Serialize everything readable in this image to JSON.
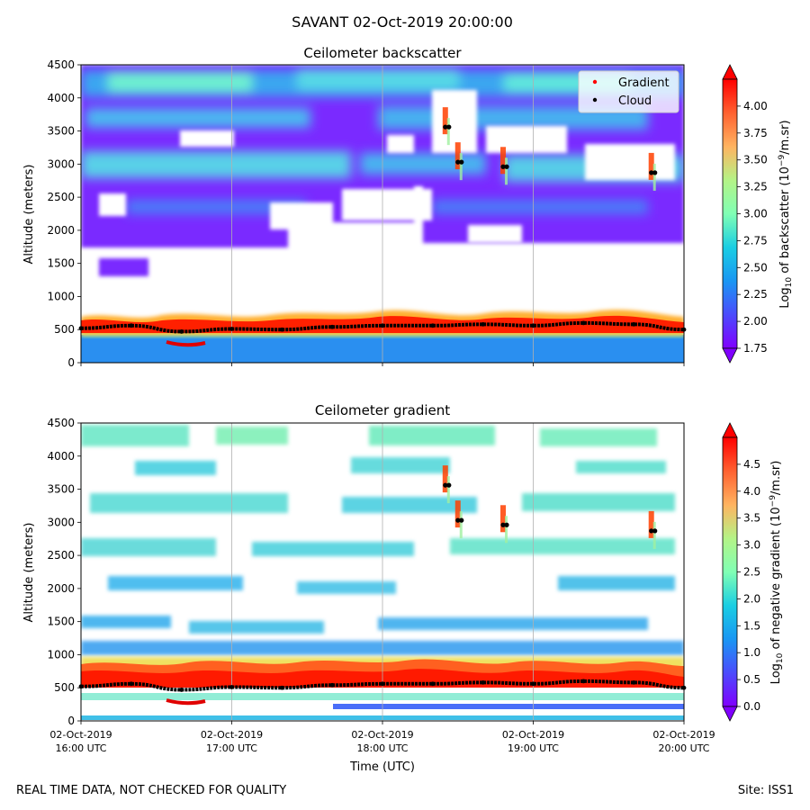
{
  "figure": {
    "suptitle": "SAVANT 02-Oct-2019 20:00:00",
    "footer_left": "REAL TIME DATA, NOT CHECKED FOR QUALITY",
    "footer_right": "Site: ISS1"
  },
  "chart_data": [
    {
      "type": "heatmap",
      "title": "Ceilometer backscatter",
      "ylabel": "Altitude (meters)",
      "ylim": [
        0,
        4500
      ],
      "yticks": [
        0,
        500,
        1000,
        1500,
        2000,
        2500,
        3000,
        3500,
        4000,
        4500
      ],
      "x_range": [
        "2019-10-02T16:00Z",
        "2019-10-02T20:00Z"
      ],
      "grid": "vertical",
      "colorbar": {
        "label_pre": "Log",
        "label_sub": "10",
        "label_mid": " of backscatter (10",
        "label_sup": "−9",
        "label_post": "/m.sr)",
        "min": 1.75,
        "max": 4.25,
        "ticks": [
          "1.75",
          "2.00",
          "2.25",
          "2.50",
          "2.75",
          "3.00",
          "3.25",
          "3.50",
          "3.75",
          "4.00"
        ],
        "colormap": "rainbow"
      },
      "legend": {
        "placement": "top-right",
        "entries": [
          {
            "label": "Gradient",
            "color": "#ff0000"
          },
          {
            "label": "Cloud",
            "color": "#000000"
          }
        ]
      },
      "cloud_base": {
        "x": [
          "16:00",
          "16:20",
          "16:40",
          "17:00",
          "17:20",
          "17:40",
          "18:00",
          "18:20",
          "18:40",
          "19:00",
          "19:20",
          "19:40",
          "20:00"
        ],
        "altitude_m": [
          520,
          560,
          470,
          510,
          500,
          540,
          560,
          560,
          580,
          560,
          600,
          580,
          500
        ]
      },
      "elevated_cloud": [
        {
          "time": "18:25",
          "altitude_m": 3560
        },
        {
          "time": "18:30",
          "altitude_m": 3030
        },
        {
          "time": "18:48",
          "altitude_m": 2960
        },
        {
          "time": "19:47",
          "altitude_m": 2870
        }
      ]
    },
    {
      "type": "heatmap",
      "title": "Ceilometer gradient",
      "xlabel": "Time (UTC)",
      "ylabel": "Altitude (meters)",
      "ylim": [
        0,
        4500
      ],
      "yticks": [
        0,
        500,
        1000,
        1500,
        2000,
        2500,
        3000,
        3500,
        4000,
        4500
      ],
      "xticks": [
        {
          "date": "02-Oct-2019",
          "time": "16:00 UTC"
        },
        {
          "date": "02-Oct-2019",
          "time": "17:00 UTC"
        },
        {
          "date": "02-Oct-2019",
          "time": "18:00 UTC"
        },
        {
          "date": "02-Oct-2019",
          "time": "19:00 UTC"
        },
        {
          "date": "02-Oct-2019",
          "time": "20:00 UTC"
        }
      ],
      "grid": "vertical",
      "colorbar": {
        "label_pre": "Log",
        "label_sub": "10",
        "label_mid": " of negative gradient (10",
        "label_sup": "−9",
        "label_post": "/m.sr)",
        "min": 0.0,
        "max": 5.0,
        "ticks": [
          "0.0",
          "0.5",
          "1.0",
          "1.5",
          "2.0",
          "2.5",
          "3.0",
          "3.5",
          "4.0",
          "4.5"
        ],
        "colormap": "rainbow"
      },
      "cloud_base": {
        "x": [
          "16:00",
          "16:20",
          "16:40",
          "17:00",
          "17:20",
          "17:40",
          "18:00",
          "18:20",
          "18:40",
          "19:00",
          "19:20",
          "19:40",
          "20:00"
        ],
        "altitude_m": [
          520,
          560,
          470,
          510,
          500,
          540,
          560,
          560,
          580,
          560,
          600,
          580,
          500
        ]
      },
      "elevated_cloud": [
        {
          "time": "18:25",
          "altitude_m": 3560
        },
        {
          "time": "18:30",
          "altitude_m": 3030
        },
        {
          "time": "18:48",
          "altitude_m": 2960
        },
        {
          "time": "19:47",
          "altitude_m": 2870
        }
      ]
    }
  ]
}
